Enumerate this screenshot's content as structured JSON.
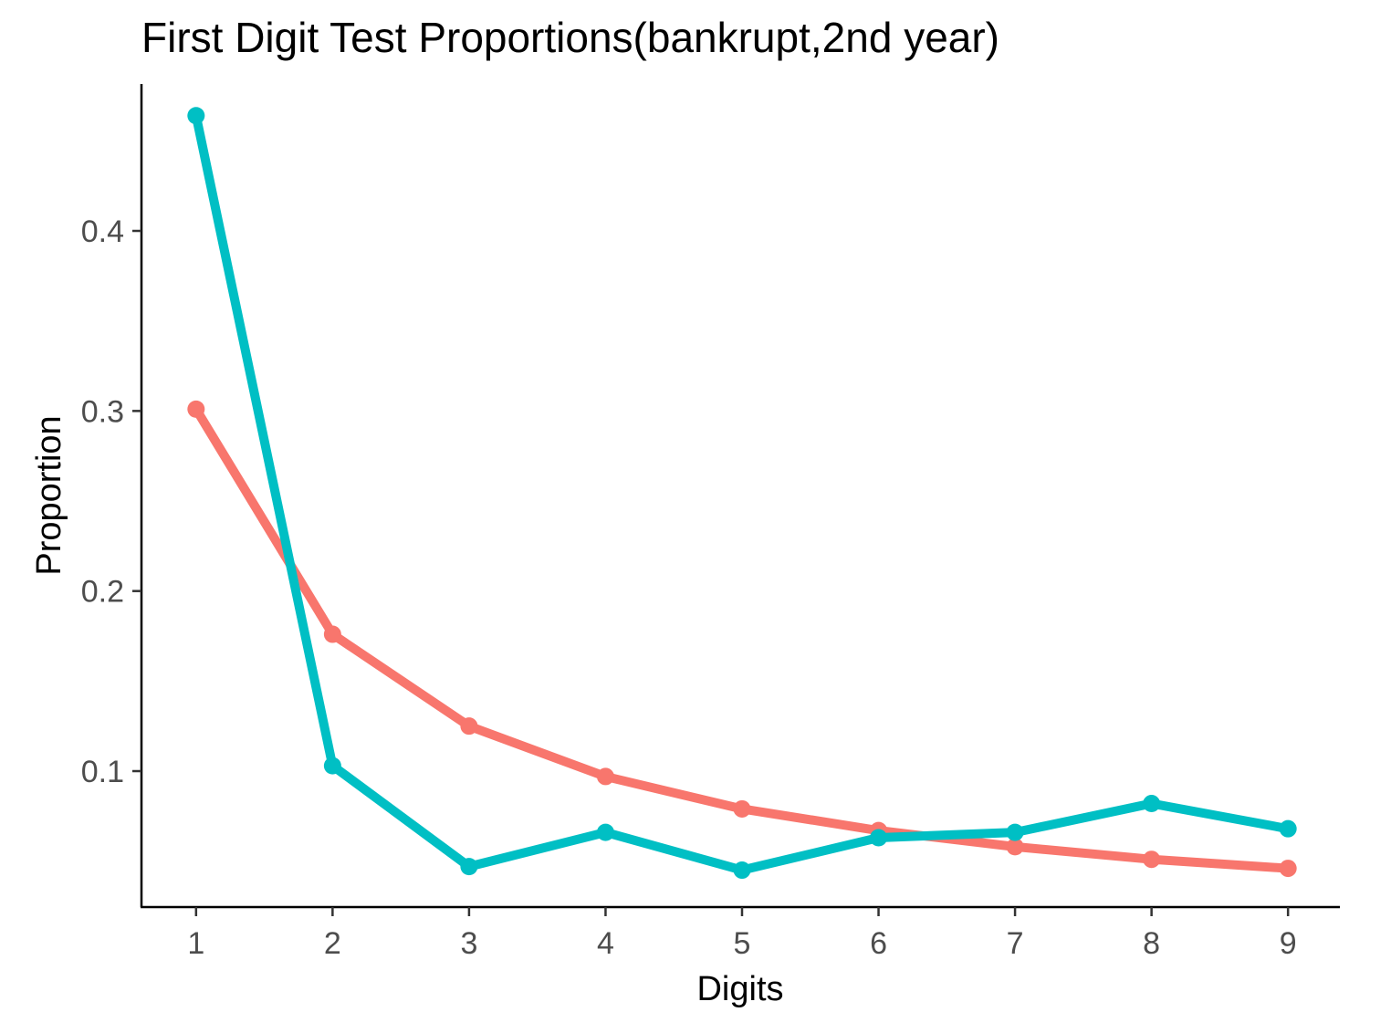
{
  "chart_data": {
    "type": "line",
    "title": "First Digit Test Proportions(bankrupt,2nd year)",
    "xlabel": "Digits",
    "ylabel": "Proportion",
    "categories": [
      1,
      2,
      3,
      4,
      5,
      6,
      7,
      8,
      9
    ],
    "x_ticks": [
      "1",
      "2",
      "3",
      "4",
      "5",
      "6",
      "7",
      "8",
      "9"
    ],
    "y_ticks": [
      {
        "value": 0.1,
        "label": "0.1"
      },
      {
        "value": 0.2,
        "label": "0.2"
      },
      {
        "value": 0.3,
        "label": "0.3"
      },
      {
        "value": 0.4,
        "label": "0.4"
      }
    ],
    "xlim": [
      0.6,
      9.38
    ],
    "ylim": [
      0.0245,
      0.4816
    ],
    "grid": false,
    "legend": "none",
    "series": [
      {
        "color": "#f8766d",
        "values": [
          0.301,
          0.176,
          0.125,
          0.097,
          0.079,
          0.067,
          0.058,
          0.051,
          0.046
        ]
      },
      {
        "color": "#00bfc4",
        "values": [
          0.464,
          0.103,
          0.047,
          0.066,
          0.045,
          0.063,
          0.066,
          0.082,
          0.068
        ]
      }
    ]
  }
}
